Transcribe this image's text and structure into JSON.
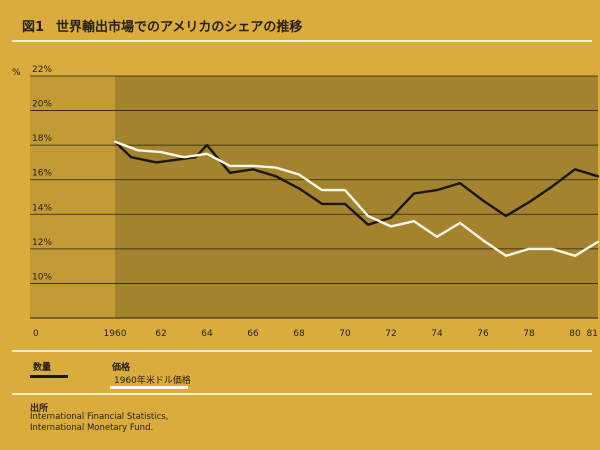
{
  "header": {
    "figure_label": "図1",
    "title": "世界輸出市場でのアメリカのシェアの推移"
  },
  "legend": {
    "quantity_label": "数量",
    "price_label": "価格",
    "price_sublabel": "1960年米ドル価格"
  },
  "source": {
    "title": "出所",
    "lines": [
      "International Financial Statistics,",
      "International Monetary Fund."
    ]
  },
  "colors": {
    "background": "#d9ac3d",
    "plot_area": "#c29b36",
    "plot_shaded": "#a3832e",
    "quantity_line": "#1c1610",
    "price_line": "#fbf6e6",
    "gridline": "#2a2112",
    "rule": "#f7efcf"
  },
  "chart_data": {
    "type": "line",
    "title": "世界輸出市場でのアメリカのシェアの推移",
    "ylabel": "%",
    "xlabel": "",
    "ylim": [
      8,
      22
    ],
    "y_ticks": [
      {
        "value": 22,
        "label": "22%"
      },
      {
        "value": 20,
        "label": "20%"
      },
      {
        "value": 18,
        "label": "18%"
      },
      {
        "value": 16,
        "label": "16%"
      },
      {
        "value": 14,
        "label": "14%"
      },
      {
        "value": 12,
        "label": "12%"
      },
      {
        "value": 10,
        "label": "10%"
      }
    ],
    "x_ticks": [
      {
        "value": 1960,
        "label": "1960"
      },
      {
        "value": 1962,
        "label": "62"
      },
      {
        "value": 1964,
        "label": "64"
      },
      {
        "value": 1966,
        "label": "66"
      },
      {
        "value": 1968,
        "label": "68"
      },
      {
        "value": 1970,
        "label": "70"
      },
      {
        "value": 1972,
        "label": "72"
      },
      {
        "value": 1974,
        "label": "74"
      },
      {
        "value": 1976,
        "label": "76"
      },
      {
        "value": 1978,
        "label": "78"
      },
      {
        "value": 1980,
        "label": "80"
      },
      {
        "value": 1981,
        "label": "81"
      }
    ],
    "origin_label": "0",
    "shaded_from": 1960,
    "grid": true,
    "series": [
      {
        "name": "数量",
        "color": "#1c1610",
        "x": [
          1960,
          1960.7,
          1961.8,
          1963.5,
          1964,
          1965,
          1966,
          1967,
          1968,
          1969,
          1970,
          1971,
          1972,
          1973,
          1974,
          1975,
          1976,
          1977,
          1978,
          1979,
          1980,
          1981
        ],
        "y": [
          18.2,
          17.3,
          17.0,
          17.3,
          18.0,
          16.4,
          16.6,
          16.2,
          15.5,
          14.6,
          14.6,
          13.4,
          13.8,
          15.2,
          15.4,
          15.8,
          14.8,
          13.9,
          14.7,
          15.6,
          16.6,
          16.2
        ]
      },
      {
        "name": "価格",
        "color": "#fbf6e6",
        "x": [
          1960,
          1961,
          1962,
          1963,
          1964,
          1965,
          1966,
          1967,
          1968,
          1969,
          1970,
          1971,
          1972,
          1973,
          1974,
          1975,
          1976,
          1977,
          1978,
          1979,
          1980,
          1981
        ],
        "y": [
          18.2,
          17.7,
          17.6,
          17.3,
          17.5,
          16.8,
          16.8,
          16.7,
          16.3,
          15.4,
          15.4,
          13.9,
          13.3,
          13.6,
          12.7,
          13.5,
          12.5,
          11.6,
          12.0,
          12.0,
          11.6,
          12.4
        ]
      }
    ]
  }
}
